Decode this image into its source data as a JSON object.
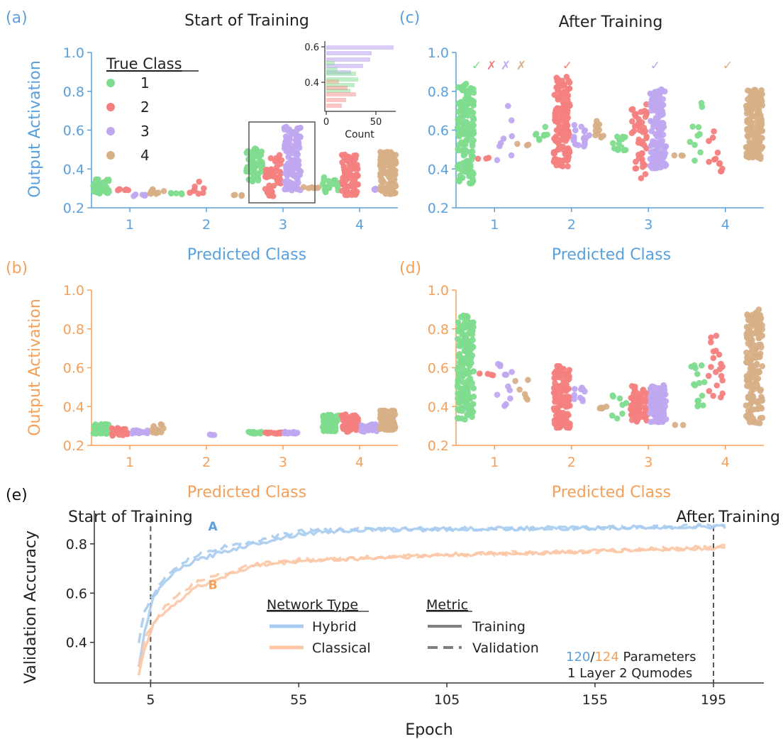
{
  "panel_labels": {
    "a": "(a)",
    "b": "(b)",
    "c": "(c)",
    "d": "(d)",
    "e": "(e)"
  },
  "titles": {
    "start": "Start of Training",
    "after": "After Training"
  },
  "axes": {
    "output_activation": "Output Activation",
    "predicted_class": "Predicted Class"
  },
  "colors": {
    "hybrid_axis": "#5aa0dc",
    "classical_axis": "#f5a05a",
    "class1": "#7fdc8f",
    "class2": "#f47f7f",
    "class3": "#c0a8f0",
    "class4": "#d8b088",
    "hybrid_line": "#a9ccf0",
    "classical_line": "#fcc6a6"
  },
  "legend": {
    "title": "True Class",
    "items": [
      "1",
      "2",
      "3",
      "4"
    ]
  },
  "inset": {
    "xlabel": "Count",
    "yticks": [
      "0.6",
      "0.4"
    ],
    "xticks": [
      "0",
      "50"
    ]
  },
  "markers": {
    "check": "✓",
    "cross": "✗"
  },
  "chart_data": [
    {
      "id": "a",
      "type": "scatter",
      "title": "Start of Training",
      "xlabel": "Predicted Class",
      "ylabel": "Output Activation",
      "categories": [
        "1",
        "2",
        "3",
        "4"
      ],
      "yticks": [
        "0.2",
        "0.4",
        "0.6",
        "0.8",
        "1.0"
      ],
      "ylim": [
        0.2,
        1.0
      ],
      "groups": [
        {
          "predicted": 1,
          "true": 1,
          "min": 0.27,
          "max": 0.35,
          "n": 45
        },
        {
          "predicted": 1,
          "true": 2,
          "min": 0.29,
          "max": 0.3,
          "n": 6
        },
        {
          "predicted": 1,
          "true": 3,
          "min": 0.26,
          "max": 0.27,
          "n": 5
        },
        {
          "predicted": 1,
          "true": 4,
          "min": 0.27,
          "max": 0.3,
          "n": 10
        },
        {
          "predicted": 2,
          "true": 1,
          "min": 0.27,
          "max": 0.28,
          "n": 5
        },
        {
          "predicted": 2,
          "true": 2,
          "min": 0.27,
          "max": 0.36,
          "n": 8
        },
        {
          "predicted": 2,
          "true": 4,
          "min": 0.26,
          "max": 0.27,
          "n": 4
        },
        {
          "predicted": 3,
          "true": 1,
          "min": 0.33,
          "max": 0.51,
          "n": 60
        },
        {
          "predicted": 3,
          "true": 2,
          "min": 0.26,
          "max": 0.48,
          "n": 50
        },
        {
          "predicted": 3,
          "true": 3,
          "min": 0.29,
          "max": 0.62,
          "n": 110
        },
        {
          "predicted": 3,
          "true": 4,
          "min": 0.3,
          "max": 0.31,
          "n": 6
        },
        {
          "predicted": 4,
          "true": 1,
          "min": 0.27,
          "max": 0.36,
          "n": 18
        },
        {
          "predicted": 4,
          "true": 2,
          "min": 0.26,
          "max": 0.48,
          "n": 80
        },
        {
          "predicted": 4,
          "true": 3,
          "min": 0.29,
          "max": 0.3,
          "n": 4
        },
        {
          "predicted": 4,
          "true": 4,
          "min": 0.27,
          "max": 0.49,
          "n": 130
        }
      ]
    },
    {
      "id": "b",
      "type": "scatter",
      "xlabel": "Predicted Class",
      "ylabel": "Output Activation",
      "categories": [
        "1",
        "2",
        "3",
        "4"
      ],
      "yticks": [
        "0.2",
        "0.4",
        "0.6",
        "0.8",
        "1.0"
      ],
      "ylim": [
        0.2,
        1.0
      ],
      "groups": [
        {
          "predicted": 1,
          "true": 1,
          "min": 0.26,
          "max": 0.31,
          "n": 40
        },
        {
          "predicted": 1,
          "true": 2,
          "min": 0.25,
          "max": 0.29,
          "n": 25
        },
        {
          "predicted": 1,
          "true": 3,
          "min": 0.26,
          "max": 0.28,
          "n": 20
        },
        {
          "predicted": 1,
          "true": 4,
          "min": 0.26,
          "max": 0.31,
          "n": 12
        },
        {
          "predicted": 2,
          "true": 3,
          "min": 0.25,
          "max": 0.26,
          "n": 3
        },
        {
          "predicted": 3,
          "true": 1,
          "min": 0.26,
          "max": 0.27,
          "n": 15
        },
        {
          "predicted": 3,
          "true": 2,
          "min": 0.26,
          "max": 0.27,
          "n": 15
        },
        {
          "predicted": 3,
          "true": 3,
          "min": 0.26,
          "max": 0.27,
          "n": 15
        },
        {
          "predicted": 4,
          "true": 1,
          "min": 0.27,
          "max": 0.36,
          "n": 60
        },
        {
          "predicted": 4,
          "true": 2,
          "min": 0.27,
          "max": 0.36,
          "n": 60
        },
        {
          "predicted": 4,
          "true": 3,
          "min": 0.27,
          "max": 0.31,
          "n": 35
        },
        {
          "predicted": 4,
          "true": 4,
          "min": 0.28,
          "max": 0.38,
          "n": 80
        }
      ]
    },
    {
      "id": "c",
      "type": "scatter",
      "title": "After Training",
      "xlabel": "Predicted Class",
      "categories": [
        "1",
        "2",
        "3",
        "4"
      ],
      "yticks": [
        "0.2",
        "0.4",
        "0.6",
        "0.8",
        "1.0"
      ],
      "ylim": [
        0.2,
        1.0
      ],
      "correctness": [
        {
          "predicted": 1,
          "true": 1,
          "mark": "check"
        },
        {
          "predicted": 1,
          "true": 2,
          "mark": "cross"
        },
        {
          "predicted": 1,
          "true": 3,
          "mark": "cross"
        },
        {
          "predicted": 1,
          "true": 4,
          "mark": "cross"
        },
        {
          "predicted": 2,
          "true": 2,
          "mark": "check"
        },
        {
          "predicted": 3,
          "true": 3,
          "mark": "check"
        },
        {
          "predicted": 4,
          "true": 4,
          "mark": "check"
        }
      ],
      "groups": [
        {
          "predicted": 1,
          "true": 1,
          "min": 0.32,
          "max": 0.84,
          "n": 150
        },
        {
          "predicted": 1,
          "true": 2,
          "min": 0.45,
          "max": 0.46,
          "n": 3
        },
        {
          "predicted": 1,
          "true": 3,
          "min": 0.44,
          "max": 0.76,
          "n": 8
        },
        {
          "predicted": 1,
          "true": 4,
          "min": 0.52,
          "max": 0.53,
          "n": 3
        },
        {
          "predicted": 2,
          "true": 1,
          "min": 0.54,
          "max": 0.62,
          "n": 8
        },
        {
          "predicted": 2,
          "true": 2,
          "min": 0.41,
          "max": 0.88,
          "n": 140
        },
        {
          "predicted": 2,
          "true": 3,
          "min": 0.51,
          "max": 0.63,
          "n": 20
        },
        {
          "predicted": 2,
          "true": 4,
          "min": 0.56,
          "max": 0.65,
          "n": 12
        },
        {
          "predicted": 3,
          "true": 1,
          "min": 0.48,
          "max": 0.58,
          "n": 15
        },
        {
          "predicted": 3,
          "true": 2,
          "min": 0.34,
          "max": 0.74,
          "n": 45
        },
        {
          "predicted": 3,
          "true": 3,
          "min": 0.4,
          "max": 0.81,
          "n": 120
        },
        {
          "predicted": 3,
          "true": 4,
          "min": 0.46,
          "max": 0.47,
          "n": 3
        },
        {
          "predicted": 4,
          "true": 1,
          "min": 0.35,
          "max": 0.76,
          "n": 10
        },
        {
          "predicted": 4,
          "true": 2,
          "min": 0.38,
          "max": 0.66,
          "n": 12
        },
        {
          "predicted": 4,
          "true": 4,
          "min": 0.45,
          "max": 0.81,
          "n": 150
        }
      ]
    },
    {
      "id": "d",
      "type": "scatter",
      "xlabel": "Predicted Class",
      "categories": [
        "1",
        "2",
        "3",
        "4"
      ],
      "yticks": [
        "0.2",
        "0.4",
        "0.6",
        "0.8",
        "1.0"
      ],
      "ylim": [
        0.2,
        1.0
      ],
      "groups": [
        {
          "predicted": 1,
          "true": 1,
          "min": 0.33,
          "max": 0.87,
          "n": 170
        },
        {
          "predicted": 1,
          "true": 2,
          "min": 0.55,
          "max": 0.58,
          "n": 4
        },
        {
          "predicted": 1,
          "true": 3,
          "min": 0.36,
          "max": 0.64,
          "n": 12
        },
        {
          "predicted": 1,
          "true": 4,
          "min": 0.42,
          "max": 0.63,
          "n": 6
        },
        {
          "predicted": 2,
          "true": 2,
          "min": 0.29,
          "max": 0.63,
          "n": 110
        },
        {
          "predicted": 2,
          "true": 3,
          "min": 0.42,
          "max": 0.5,
          "n": 10
        },
        {
          "predicted": 2,
          "true": 4,
          "min": 0.39,
          "max": 0.4,
          "n": 5
        },
        {
          "predicted": 3,
          "true": 1,
          "min": 0.33,
          "max": 0.46,
          "n": 8
        },
        {
          "predicted": 3,
          "true": 2,
          "min": 0.32,
          "max": 0.51,
          "n": 80
        },
        {
          "predicted": 3,
          "true": 3,
          "min": 0.32,
          "max": 0.51,
          "n": 110
        },
        {
          "predicted": 3,
          "true": 4,
          "min": 0.3,
          "max": 0.31,
          "n": 2
        },
        {
          "predicted": 4,
          "true": 1,
          "min": 0.37,
          "max": 0.64,
          "n": 15
        },
        {
          "predicted": 4,
          "true": 2,
          "min": 0.44,
          "max": 0.77,
          "n": 20
        },
        {
          "predicted": 4,
          "true": 4,
          "min": 0.3,
          "max": 0.9,
          "n": 170
        }
      ]
    },
    {
      "id": "e",
      "type": "line",
      "xlabel": "Epoch",
      "ylabel": "Validation Accuracy",
      "xticks": [
        "5",
        "55",
        "105",
        "155",
        "195"
      ],
      "yticks": [
        "0.4",
        "0.6",
        "0.8"
      ],
      "xlim": [
        -14,
        212
      ],
      "ylim": [
        0.235,
        0.935
      ],
      "markers": [
        {
          "epoch": 5,
          "label": "Start of Training"
        },
        {
          "epoch": 195,
          "label": "After Training"
        }
      ],
      "series": [
        {
          "name": "Hybrid",
          "metric": "Training",
          "points": [
            [
              1,
              0.3
            ],
            [
              3,
              0.45
            ],
            [
              6,
              0.58
            ],
            [
              10,
              0.65
            ],
            [
              15,
              0.7
            ],
            [
              20,
              0.73
            ],
            [
              30,
              0.77
            ],
            [
              40,
              0.8
            ],
            [
              55,
              0.84
            ],
            [
              70,
              0.855
            ],
            [
              105,
              0.86
            ],
            [
              155,
              0.865
            ],
            [
              199,
              0.87
            ]
          ]
        },
        {
          "name": "Hybrid",
          "metric": "Validation",
          "points": [
            [
              1,
              0.4
            ],
            [
              3,
              0.53
            ],
            [
              6,
              0.6
            ],
            [
              10,
              0.66
            ],
            [
              15,
              0.72
            ],
            [
              20,
              0.75
            ],
            [
              30,
              0.79
            ],
            [
              40,
              0.81
            ],
            [
              55,
              0.85
            ],
            [
              70,
              0.86
            ],
            [
              105,
              0.86
            ],
            [
              155,
              0.865
            ],
            [
              199,
              0.875
            ]
          ]
        },
        {
          "name": "Classical",
          "metric": "Training",
          "points": [
            [
              1,
              0.27
            ],
            [
              3,
              0.38
            ],
            [
              6,
              0.47
            ],
            [
              10,
              0.53
            ],
            [
              20,
              0.62
            ],
            [
              30,
              0.67
            ],
            [
              40,
              0.71
            ],
            [
              55,
              0.73
            ],
            [
              105,
              0.755
            ],
            [
              155,
              0.77
            ],
            [
              199,
              0.785
            ]
          ]
        },
        {
          "name": "Classical",
          "metric": "Validation",
          "points": [
            [
              1,
              0.3
            ],
            [
              3,
              0.41
            ],
            [
              6,
              0.48
            ],
            [
              10,
              0.55
            ],
            [
              20,
              0.64
            ],
            [
              30,
              0.68
            ],
            [
              40,
              0.715
            ],
            [
              55,
              0.735
            ],
            [
              105,
              0.755
            ],
            [
              155,
              0.77
            ],
            [
              199,
              0.79
            ]
          ]
        }
      ],
      "annotations": [
        {
          "text": "A",
          "epoch": 26,
          "value": 0.855,
          "series": "Hybrid"
        },
        {
          "text": "B",
          "epoch": 26,
          "value": 0.617,
          "series": "Classical"
        }
      ],
      "legend": {
        "network_title": "Network Type",
        "network_items": [
          "Hybrid",
          "Classical"
        ],
        "metric_title": "Metric",
        "metric_items": [
          "Training",
          "Validation"
        ]
      },
      "params": {
        "hybrid": "120",
        "separator": "/",
        "classical": "124",
        "suffix": " Parameters",
        "line2": "1 Layer 2 Qumodes"
      }
    }
  ]
}
